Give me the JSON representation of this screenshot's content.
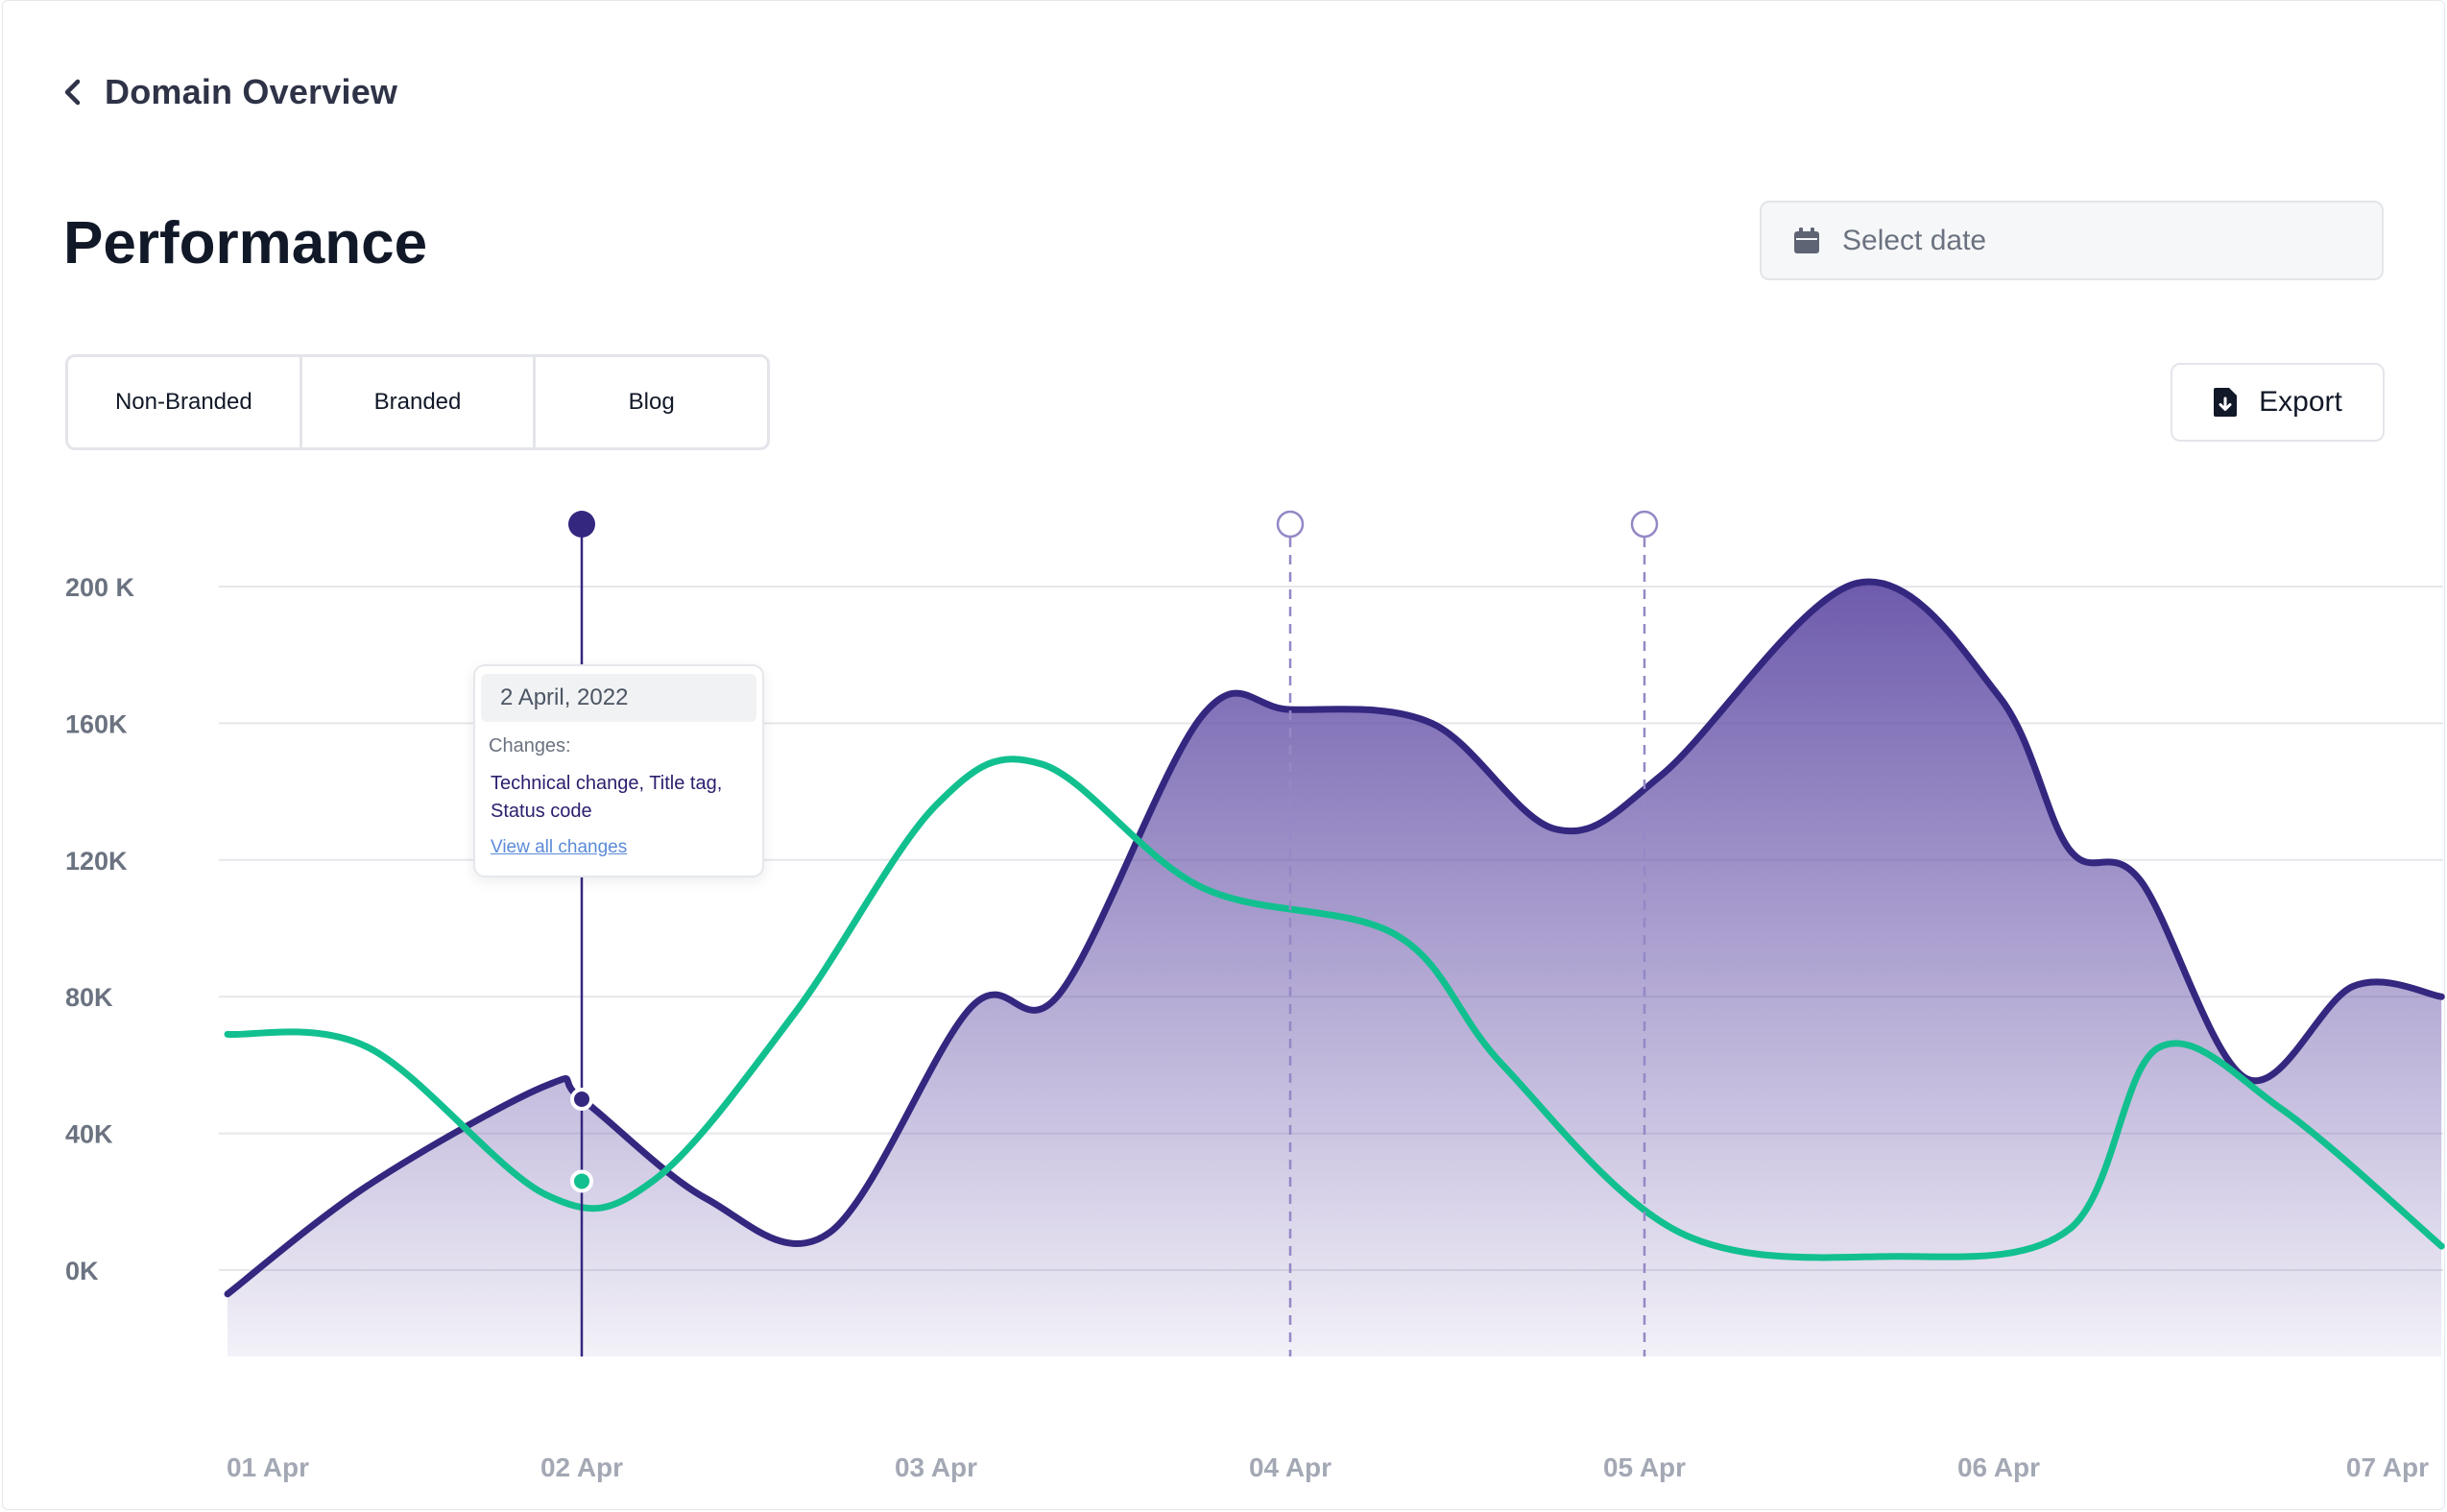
{
  "header": {
    "back_label": "Domain Overview"
  },
  "page_title": "Performance",
  "date_picker": {
    "placeholder": "Select date"
  },
  "tabs": [
    {
      "label": "Non-Branded"
    },
    {
      "label": "Branded"
    },
    {
      "label": "Blog"
    }
  ],
  "export": {
    "label": "Export"
  },
  "tooltip": {
    "date": "2 April, 2022",
    "changes_label": "Changes:",
    "changes": "Technical change, Title tag, Status code",
    "link": "View all changes"
  },
  "colors": {
    "purple": "#34277f",
    "green": "#12c08f",
    "marker_dashed": "#9588c6"
  },
  "chart_data": {
    "type": "area",
    "x_labels": [
      "01 Apr",
      "02 Apr",
      "03 Apr",
      "04 Apr",
      "05 Apr",
      "06 Apr",
      "07 Apr"
    ],
    "y_ticks": [
      {
        "label": "0K",
        "value": 0
      },
      {
        "label": "40K",
        "value": 40000
      },
      {
        "label": "80K",
        "value": 80000
      },
      {
        "label": "120K",
        "value": 120000
      },
      {
        "label": "160K",
        "value": 160000
      },
      {
        "label": "200 K",
        "value": 200000
      }
    ],
    "ylim": [
      -30000,
      200000
    ],
    "grid": true,
    "series": [
      {
        "color": "#34277f",
        "filled": true,
        "points": [
          [
            0,
            -7000
          ],
          [
            0.4,
            25000
          ],
          [
            0.9,
            54000
          ],
          [
            1.0,
            50000
          ],
          [
            1.35,
            21000
          ],
          [
            1.7,
            11000
          ],
          [
            2.1,
            77000
          ],
          [
            2.35,
            81000
          ],
          [
            2.75,
            162000
          ],
          [
            3.0,
            164000
          ],
          [
            3.4,
            160000
          ],
          [
            3.75,
            129000
          ],
          [
            4.05,
            145000
          ],
          [
            4.6,
            201000
          ],
          [
            5.0,
            168000
          ],
          [
            5.2,
            123000
          ],
          [
            5.4,
            114000
          ],
          [
            5.7,
            56000
          ],
          [
            6.0,
            83000
          ],
          [
            6.25,
            80000
          ]
        ]
      },
      {
        "color": "#12c08f",
        "filled": false,
        "points": [
          [
            0,
            69000
          ],
          [
            0.4,
            65000
          ],
          [
            0.9,
            22000
          ],
          [
            1.2,
            26000
          ],
          [
            1.6,
            75000
          ],
          [
            2.0,
            136000
          ],
          [
            2.3,
            148000
          ],
          [
            2.75,
            112000
          ],
          [
            3.3,
            98000
          ],
          [
            3.6,
            60000
          ],
          [
            4.1,
            11000
          ],
          [
            4.7,
            4000
          ],
          [
            5.2,
            12000
          ],
          [
            5.45,
            65000
          ],
          [
            5.8,
            47000
          ],
          [
            6.25,
            7000
          ]
        ]
      }
    ],
    "markers": [
      {
        "x": 1.0,
        "style": "solid",
        "series_values": [
          50000,
          26000
        ]
      },
      {
        "x": 3.0,
        "style": "dashed"
      },
      {
        "x": 4.0,
        "style": "dashed"
      }
    ]
  }
}
